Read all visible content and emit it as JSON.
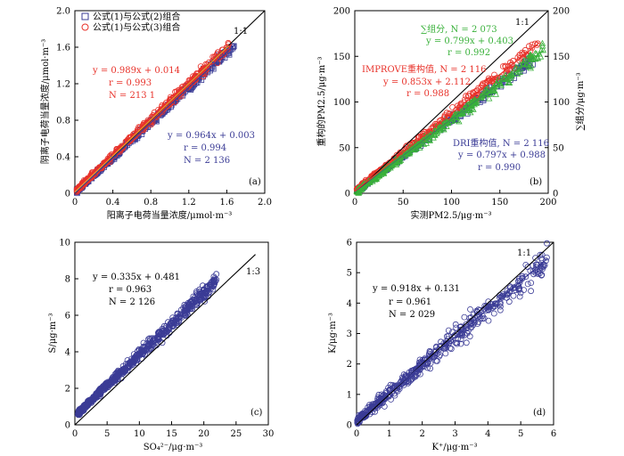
{
  "colors": {
    "blue": "#3b3c96",
    "red": "#e8322a",
    "green": "#39b13a",
    "orange": "#f0a030",
    "black": "#000000"
  },
  "chart_data": [
    {
      "type": "scatter",
      "index_label": "(a)",
      "xlabel": "阳离子电荷当量浓度/μmol·m⁻³",
      "ylabel": "阴离子电荷当量浓度/μmol·m⁻³",
      "xlim": [
        0,
        2.0
      ],
      "ylim": [
        0,
        2.0
      ],
      "xticks": [
        "0",
        "0.4",
        "0.8",
        "1.2",
        "1.6",
        "2.0"
      ],
      "yticks": [
        "0",
        "0.4",
        "0.8",
        "1.2",
        "1.6",
        "2.0"
      ],
      "one_to_one_label": "1:1",
      "legend": [
        "公式(1)与公式(2)组合",
        "公式(1)与公式(3)组合"
      ],
      "series": [
        {
          "name": "公式(1)与公式(2)组合",
          "marker": "square",
          "color": "#3b3c96",
          "fit": {
            "slope": 0.964,
            "intercept": 0.003
          },
          "x_range": [
            0.02,
            1.68
          ],
          "annotation": [
            "y = 0.964x + 0.003",
            "r = 0.994",
            "N = 2 136"
          ]
        },
        {
          "name": "公式(1)与公式(3)组合",
          "marker": "circle",
          "color": "#e8322a",
          "fit": {
            "slope": 0.989,
            "intercept": 0.014
          },
          "x_range": [
            0.02,
            1.62
          ],
          "annotation": [
            "y = 0.989x + 0.014",
            "r = 0.993",
            "N = 213 1"
          ]
        }
      ]
    },
    {
      "type": "scatter",
      "index_label": "(b)",
      "xlabel": "实测PM2.5/μg·m⁻³",
      "ylabel": "重构的PM2.5/μg·m⁻³",
      "y2label": "∑组分/μg·m⁻³",
      "xlim": [
        0,
        200
      ],
      "ylim": [
        0,
        200
      ],
      "xticks": [
        "0",
        "50",
        "100",
        "150",
        "200"
      ],
      "yticks": [
        "0",
        "50",
        "100",
        "150",
        "200"
      ],
      "y2ticks": [
        "0",
        "50",
        "100",
        "150",
        "200"
      ],
      "one_to_one_label": "1:1",
      "series": [
        {
          "name": "DRI重构值",
          "marker": "square",
          "color": "#3b3c96",
          "fit": {
            "slope": 0.797,
            "intercept": 0.988
          },
          "x_range": [
            2,
            185
          ],
          "annotation": [
            "DRI重构值, N = 2 116",
            "y = 0.797x + 0.988",
            "r = 0.990"
          ]
        },
        {
          "name": "IMPROVE重构值",
          "marker": "circle",
          "color": "#e8322a",
          "fit": {
            "slope": 0.853,
            "intercept": 2.112
          },
          "x_range": [
            2,
            190
          ],
          "annotation": [
            "IMPROVE重构值, N = 2 116",
            "y = 0.853x + 2.112",
            "r = 0.988"
          ]
        },
        {
          "name": "∑组分",
          "marker": "triangle",
          "color": "#39b13a",
          "fit": {
            "slope": 0.799,
            "intercept": 0.403
          },
          "x_range": [
            2,
            195
          ],
          "annotation": [
            "∑组分, N = 2 073",
            "y = 0.799x + 0.403",
            "r = 0.992"
          ]
        }
      ]
    },
    {
      "type": "scatter",
      "index_label": "(c)",
      "xlabel": "SO₄²⁻/μg·m⁻³",
      "ylabel": "S/μg·m⁻³",
      "xlim": [
        0,
        30
      ],
      "ylim": [
        0,
        10
      ],
      "xticks": [
        "0",
        "5",
        "10",
        "15",
        "20",
        "25",
        "30"
      ],
      "yticks": [
        "0",
        "2",
        "4",
        "6",
        "8",
        "10"
      ],
      "ref_label": "1:3",
      "series": [
        {
          "name": "S",
          "marker": "circle",
          "color": "#3b3c96",
          "fit": {
            "slope": 0.335,
            "intercept": 0.481
          },
          "x_range": [
            0.5,
            22
          ],
          "annotation": [
            "y = 0.335x + 0.481",
            "r = 0.963",
            "N = 2 126"
          ]
        }
      ]
    },
    {
      "type": "scatter",
      "index_label": "(d)",
      "xlabel": "K⁺/μg·m⁻³",
      "ylabel": "K/μg·m⁻³",
      "xlim": [
        0,
        6
      ],
      "ylim": [
        0,
        6
      ],
      "xticks": [
        "0",
        "1",
        "2",
        "3",
        "4",
        "5",
        "6"
      ],
      "yticks": [
        "0",
        "1",
        "2",
        "3",
        "4",
        "5",
        "6"
      ],
      "one_to_one_label": "1:1",
      "series": [
        {
          "name": "K",
          "marker": "circle",
          "color": "#3b3c96",
          "fit": {
            "slope": 0.918,
            "intercept": 0.131
          },
          "x_range": [
            0.02,
            5.8
          ],
          "annotation": [
            "y = 0.918x + 0.131",
            "r = 0.961",
            "N = 2 029"
          ]
        }
      ]
    }
  ]
}
